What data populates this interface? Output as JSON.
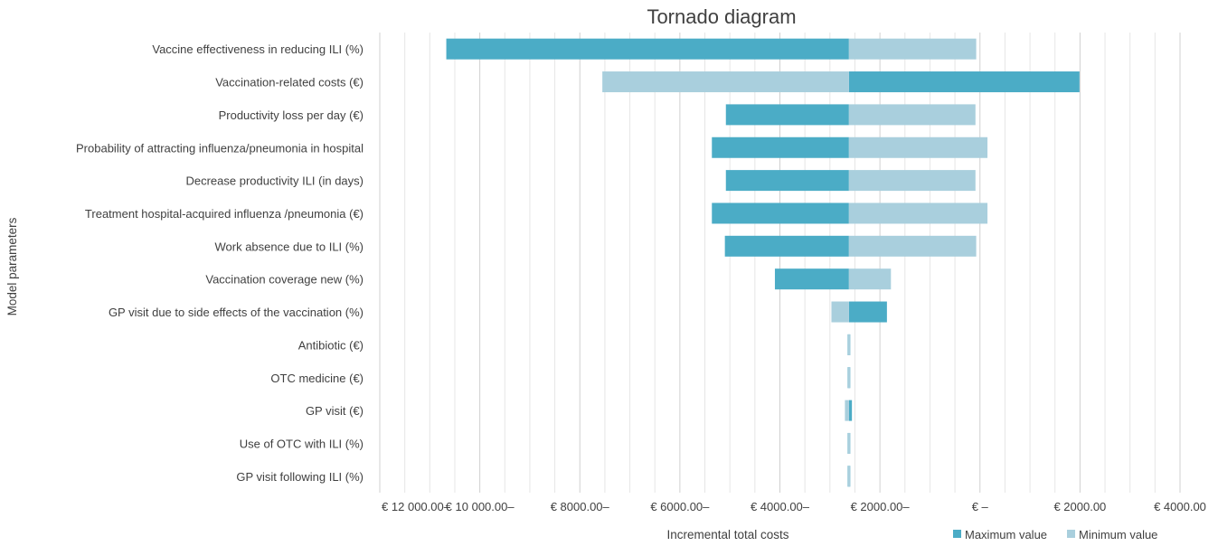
{
  "chart_data": {
    "type": "bar",
    "orientation": "horizontal",
    "title": "Tornado diagram",
    "xlabel": "Incremental total costs",
    "ylabel": "Model parameters",
    "colors": {
      "max": "#4bacc6",
      "min": "#a9cfdd",
      "grid": "#d9d9d9"
    },
    "categories": [
      "Vaccine effectiveness in reducing ILI (%)",
      "Vaccination-related costs  (€)",
      "Productivity loss per day (€)",
      "Probability of attracting influenza/pneumonia in hospital",
      "Decrease productivity ILI (in days)",
      "Treatment hospital-acquired influenza /pneumonia (€)",
      "Work absence due to ILI (%)",
      "Vaccination coverage new (%)",
      "GP visit due to side effects of the vaccination (%)",
      "Antibiotic (€)",
      "OTC medicine (€)",
      "GP visit (€)",
      "Use of OTC with ILI (%)",
      "GP visit following ILI (%)"
    ],
    "base_value": -2620,
    "series": [
      {
        "name": "Maximum value",
        "color": "#4bacc6",
        "values": [
          -10670,
          1990,
          -5080,
          -5360,
          -5080,
          -5360,
          -5100,
          -4100,
          -1860,
          -2650,
          -2650,
          -2560,
          -2650,
          -2650
        ]
      },
      {
        "name": "Minimum value",
        "color": "#a9cfdd",
        "values": [
          -75,
          -7550,
          -90,
          150,
          -90,
          150,
          -75,
          -1780,
          -2970,
          -2620,
          -2620,
          -2700,
          -2620,
          -2580
        ]
      }
    ],
    "xlim": [
      -12000,
      4000
    ],
    "x_ticks": [
      -12000,
      -10000,
      -8000,
      -6000,
      -4000,
      -2000,
      0,
      2000,
      4000
    ],
    "x_tick_labels": [
      "€ 12 000.00–",
      "€ 10 000.00–",
      "€ 8000.00–",
      "€ 6000.00–",
      "€ 4000.00–",
      "€ 2000.00–",
      "€ –",
      "€ 2000.00",
      "€ 4000.00"
    ],
    "grid": true,
    "legend_position": "bottom-right"
  }
}
